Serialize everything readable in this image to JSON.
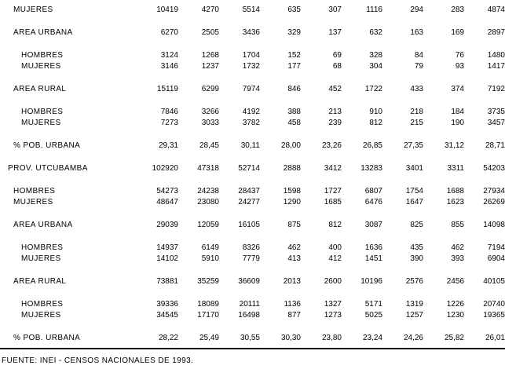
{
  "colors": {
    "text": "#000000",
    "background": "#ffffff",
    "rule": "#000000"
  },
  "table": {
    "columns_count": 9,
    "rows": [
      {
        "label": "MUJERES",
        "indent": 1,
        "gap_before": false,
        "values": [
          "10419",
          "4270",
          "5514",
          "635",
          "307",
          "1116",
          "294",
          "283",
          "4874"
        ]
      },
      {
        "label": "AREA URBANA",
        "indent": 1,
        "gap_before": true,
        "values": [
          "6270",
          "2505",
          "3436",
          "329",
          "137",
          "632",
          "163",
          "169",
          "2897"
        ]
      },
      {
        "label": "HOMBRES",
        "indent": 2,
        "gap_before": true,
        "values": [
          "3124",
          "1268",
          "1704",
          "152",
          "69",
          "328",
          "84",
          "76",
          "1480"
        ]
      },
      {
        "label": "MUJERES",
        "indent": 2,
        "gap_before": false,
        "values": [
          "3146",
          "1237",
          "1732",
          "177",
          "68",
          "304",
          "79",
          "93",
          "1417"
        ]
      },
      {
        "label": "AREA RURAL",
        "indent": 1,
        "gap_before": true,
        "values": [
          "15119",
          "6299",
          "7974",
          "846",
          "452",
          "1722",
          "433",
          "374",
          "7192"
        ]
      },
      {
        "label": "HOMBRES",
        "indent": 2,
        "gap_before": true,
        "values": [
          "7846",
          "3266",
          "4192",
          "388",
          "213",
          "910",
          "218",
          "184",
          "3735"
        ]
      },
      {
        "label": "MUJERES",
        "indent": 2,
        "gap_before": false,
        "values": [
          "7273",
          "3033",
          "3782",
          "458",
          "239",
          "812",
          "215",
          "190",
          "3457"
        ]
      },
      {
        "label": "% POB. URBANA",
        "indent": 1,
        "gap_before": true,
        "values": [
          "29,31",
          "28,45",
          "30,11",
          "28,00",
          "23,26",
          "26,85",
          "27,35",
          "31,12",
          "28,71"
        ]
      },
      {
        "label": "PROV. UTCUBAMBA",
        "indent": 0,
        "gap_before": true,
        "values": [
          "102920",
          "47318",
          "52714",
          "2888",
          "3412",
          "13283",
          "3401",
          "3311",
          "54203"
        ]
      },
      {
        "label": "HOMBRES",
        "indent": 1,
        "gap_before": true,
        "values": [
          "54273",
          "24238",
          "28437",
          "1598",
          "1727",
          "6807",
          "1754",
          "1688",
          "27934"
        ]
      },
      {
        "label": "MUJERES",
        "indent": 1,
        "gap_before": false,
        "values": [
          "48647",
          "23080",
          "24277",
          "1290",
          "1685",
          "6476",
          "1647",
          "1623",
          "26269"
        ]
      },
      {
        "label": "AREA URBANA",
        "indent": 1,
        "gap_before": true,
        "values": [
          "29039",
          "12059",
          "16105",
          "875",
          "812",
          "3087",
          "825",
          "855",
          "14098"
        ]
      },
      {
        "label": "HOMBRES",
        "indent": 2,
        "gap_before": true,
        "values": [
          "14937",
          "6149",
          "8326",
          "462",
          "400",
          "1636",
          "435",
          "462",
          "7194"
        ]
      },
      {
        "label": "MUJERES",
        "indent": 2,
        "gap_before": false,
        "values": [
          "14102",
          "5910",
          "7779",
          "413",
          "412",
          "1451",
          "390",
          "393",
          "6904"
        ]
      },
      {
        "label": "AREA RURAL",
        "indent": 1,
        "gap_before": true,
        "values": [
          "73881",
          "35259",
          "36609",
          "2013",
          "2600",
          "10196",
          "2576",
          "2456",
          "40105"
        ]
      },
      {
        "label": "HOMBRES",
        "indent": 2,
        "gap_before": true,
        "values": [
          "39336",
          "18089",
          "20111",
          "1136",
          "1327",
          "5171",
          "1319",
          "1226",
          "20740"
        ]
      },
      {
        "label": "MUJERES",
        "indent": 2,
        "gap_before": false,
        "values": [
          "34545",
          "17170",
          "16498",
          "877",
          "1273",
          "5025",
          "1257",
          "1230",
          "19365"
        ]
      },
      {
        "label": "% POB. URBANA",
        "indent": 1,
        "gap_before": true,
        "values": [
          "28,22",
          "25,49",
          "30,55",
          "30,30",
          "23,80",
          "23,24",
          "24,26",
          "25,82",
          "26,01"
        ]
      }
    ]
  },
  "footer": {
    "source_note": "FUENTE: INEI - CENSOS NACIONALES DE 1993."
  }
}
